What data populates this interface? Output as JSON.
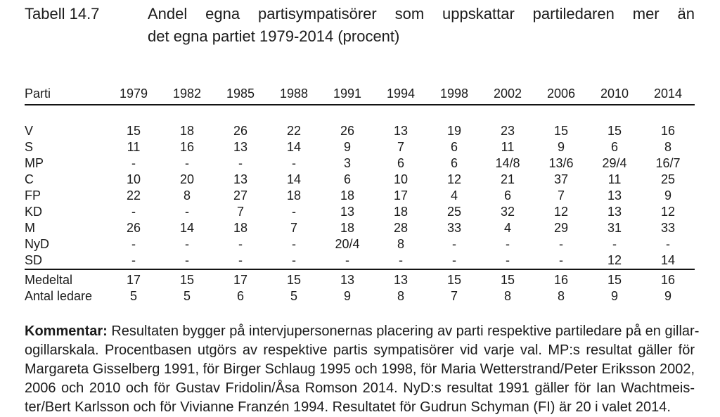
{
  "title": {
    "number": "Tabell 14.7",
    "lines": [
      "Andel egna partisympatisörer som uppskattar partiledaren mer än",
      "det egna partiet 1979-2014 (procent)"
    ]
  },
  "table": {
    "header": [
      "Parti",
      "1979",
      "1982",
      "1985",
      "1988",
      "1991",
      "1994",
      "1998",
      "2002",
      "2006",
      "2010",
      "2014"
    ],
    "rows": [
      {
        "label": "V",
        "values": [
          "15",
          "18",
          "26",
          "22",
          "26",
          "13",
          "19",
          "23",
          "15",
          "15",
          "16"
        ]
      },
      {
        "label": "S",
        "values": [
          "11",
          "16",
          "13",
          "14",
          "9",
          "7",
          "6",
          "11",
          "9",
          "6",
          "8"
        ]
      },
      {
        "label": "MP",
        "values": [
          "-",
          "-",
          "-",
          "-",
          "3",
          "6",
          "6",
          "14/8",
          "13/6",
          "29/4",
          "16/7"
        ]
      },
      {
        "label": "C",
        "values": [
          "10",
          "20",
          "13",
          "14",
          "6",
          "10",
          "12",
          "21",
          "37",
          "11",
          "25"
        ]
      },
      {
        "label": "FP",
        "values": [
          "22",
          "8",
          "27",
          "18",
          "18",
          "17",
          "4",
          "6",
          "7",
          "13",
          "9"
        ]
      },
      {
        "label": "KD",
        "values": [
          "-",
          "-",
          "7",
          "-",
          "13",
          "18",
          "25",
          "32",
          "12",
          "13",
          "12"
        ]
      },
      {
        "label": "M",
        "values": [
          "26",
          "14",
          "18",
          "7",
          "18",
          "28",
          "33",
          "4",
          "29",
          "31",
          "33"
        ]
      },
      {
        "label": "NyD",
        "values": [
          "-",
          "-",
          "-",
          "-",
          "20/4",
          "8",
          "-",
          "-",
          "-",
          "-",
          "-"
        ]
      },
      {
        "label": "SD",
        "values": [
          "-",
          "-",
          "-",
          "-",
          "-",
          "-",
          "-",
          "-",
          "-",
          "12",
          "14"
        ]
      }
    ],
    "summary_rows": [
      {
        "label": "Medeltal",
        "values": [
          "17",
          "15",
          "17",
          "15",
          "13",
          "13",
          "15",
          "15",
          "16",
          "15",
          "16"
        ]
      },
      {
        "label": "Antal ledare",
        "values": [
          "5",
          "5",
          "6",
          "5",
          "9",
          "8",
          "7",
          "8",
          "8",
          "9",
          "9"
        ]
      }
    ]
  },
  "comment": {
    "label": "Kommentar:",
    "lines": [
      "Resultaten bygger på intervjupersonernas placering av parti respektive partiledare på en gillar-",
      "ogillarskala. Procentbasen utgörs av respektive partis sympatisörer vid varje val. MP:s resultat gäller för",
      "Margareta Gisselberg 1991, för Birger Schlaug 1995 och 1998, för Maria Wetterstrand/Peter Eriksson 2002,",
      "2006 och 2010 och för Gustav Fridolin/Åsa Romson 2014. NyD:s resultat 1991 gäller för Ian Wachtmeis-",
      "ter/Bert Karlsson och för Vivianne Franzén 1994. Resultatet för Gudrun Schyman (FI) är 20 i valet 2014."
    ]
  }
}
